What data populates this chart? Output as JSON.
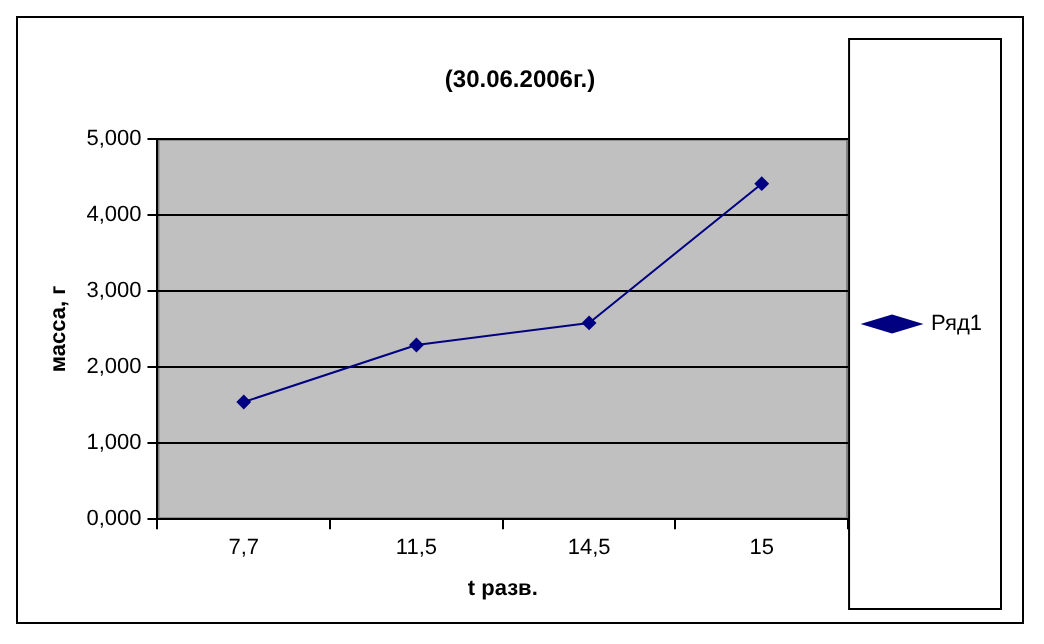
{
  "chart_data": {
    "type": "line",
    "title": "(30.06.2006г.)",
    "xlabel": "t разв.",
    "ylabel": "масса, г",
    "categories": [
      "7,7",
      "11,5",
      "14,5",
      "15"
    ],
    "series": [
      {
        "name": "Ряд1",
        "color": "#000080",
        "values": [
          1.54,
          2.29,
          2.58,
          4.41
        ]
      }
    ],
    "ylim": [
      0,
      5
    ],
    "yticks": [
      {
        "value": 0,
        "label": "0,000"
      },
      {
        "value": 1,
        "label": "1,000"
      },
      {
        "value": 2,
        "label": "2,000"
      },
      {
        "value": 3,
        "label": "3,000"
      },
      {
        "value": 4,
        "label": "4,000"
      },
      {
        "value": 5,
        "label": "5,000"
      }
    ],
    "grid": "y",
    "legend": "right",
    "marker": "diamond",
    "line_style": "solid"
  }
}
